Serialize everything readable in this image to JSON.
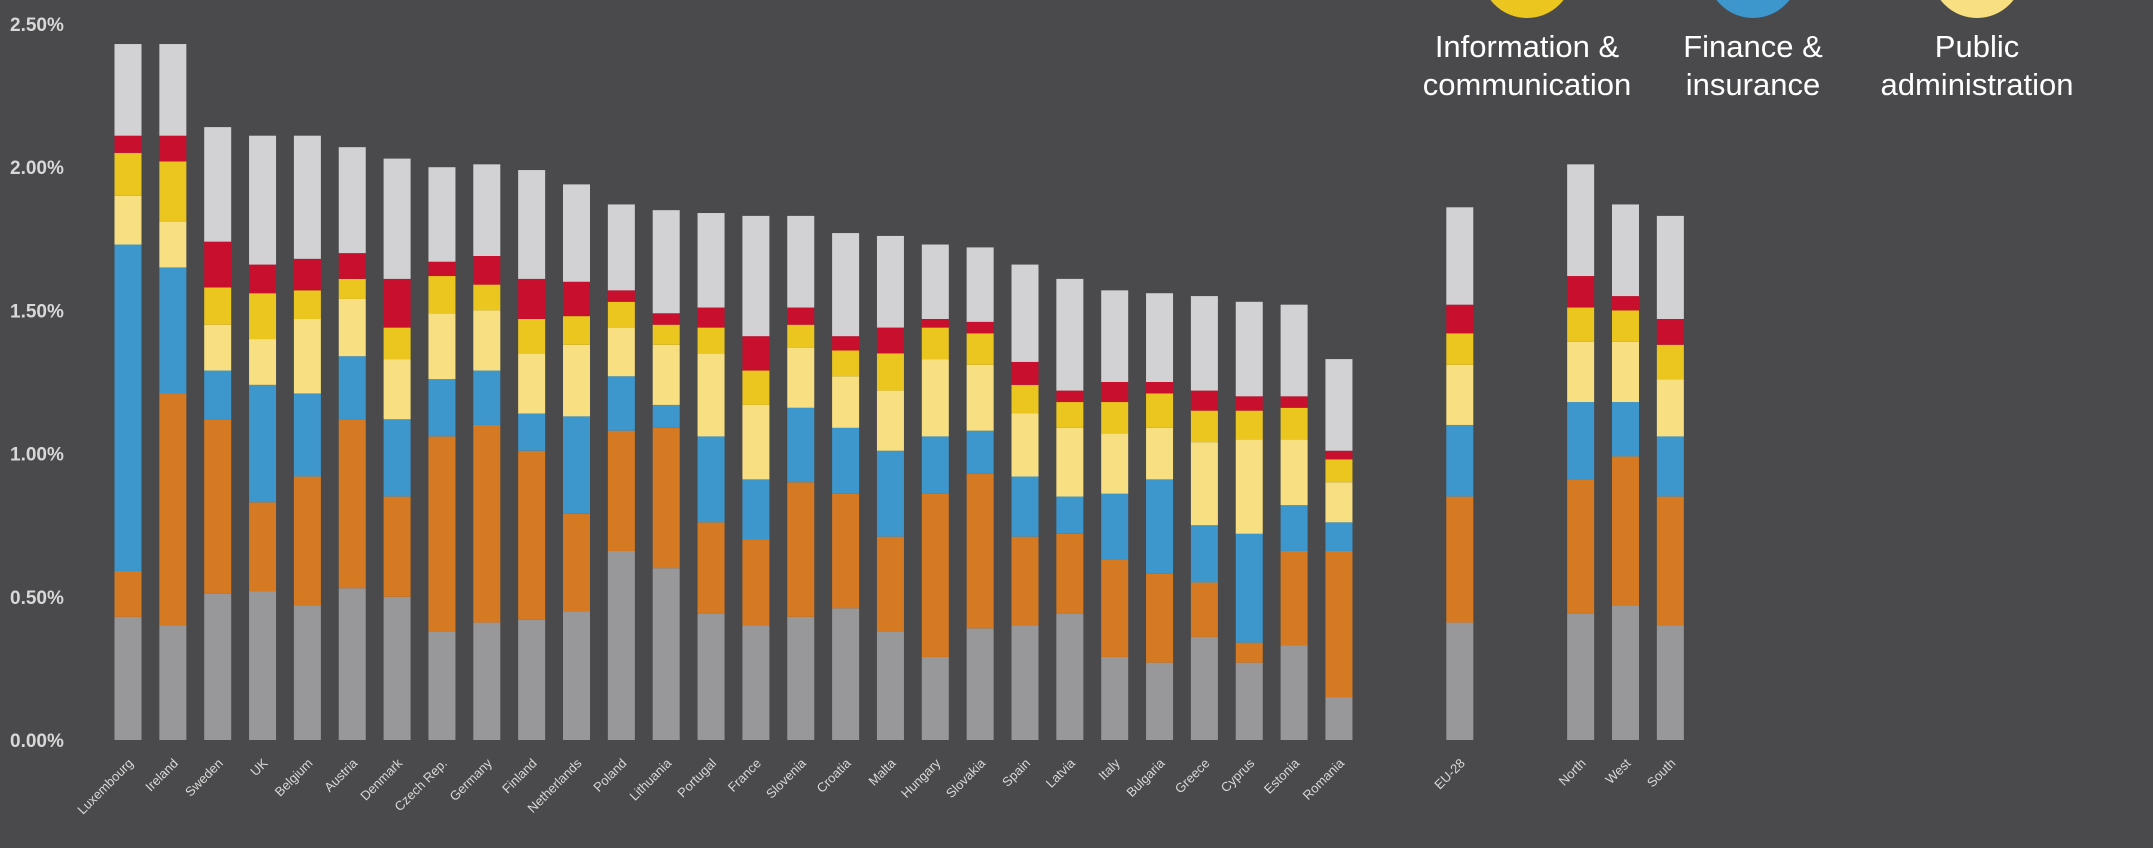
{
  "chart_data": {
    "type": "bar",
    "stacked": true,
    "ylim": [
      0,
      2.5
    ],
    "yticks": [
      "0.00%",
      "0.50%",
      "1.00%",
      "1.50%",
      "2.00%",
      "2.50%"
    ],
    "ytick_values": [
      0,
      0.5,
      1.0,
      1.5,
      2.0,
      2.5
    ],
    "grid": false,
    "legend_position": "top-right",
    "categories": [
      "Luxembourg",
      "Ireland",
      "Sweden",
      "UK",
      "Belgium",
      "Austria",
      "Denmark",
      "Czech Rep.",
      "Germany",
      "Finland",
      "Netherlands",
      "Poland",
      "Lithuania",
      "Portugal",
      "France",
      "Slovenia",
      "Croatia",
      "Malta",
      "Hungary",
      "Slovakia",
      "Spain",
      "Latvia",
      "Italy",
      "Bulgaria",
      "Greece",
      "Cyprus",
      "Estonia",
      "Romania",
      "EU-28",
      "North",
      "West",
      "South"
    ],
    "category_gap_after": [
      27,
      28
    ],
    "series": [
      {
        "name": "",
        "color": "#98979a",
        "values": [
          0.43,
          0.4,
          0.51,
          0.52,
          0.47,
          0.53,
          0.5,
          0.38,
          0.41,
          0.42,
          0.45,
          0.66,
          0.6,
          0.44,
          0.4,
          0.43,
          0.46,
          0.38,
          0.29,
          0.39,
          0.4,
          0.44,
          0.29,
          0.27,
          0.36,
          0.27,
          0.33,
          0.15,
          0.41,
          0.44,
          0.47,
          0.4
        ]
      },
      {
        "name": "",
        "color": "#d57a22",
        "values": [
          0.16,
          0.81,
          0.61,
          0.31,
          0.45,
          0.59,
          0.35,
          0.68,
          0.69,
          0.59,
          0.34,
          0.42,
          0.49,
          0.32,
          0.3,
          0.47,
          0.4,
          0.33,
          0.57,
          0.54,
          0.31,
          0.28,
          0.34,
          0.31,
          0.19,
          0.07,
          0.33,
          0.51,
          0.44,
          0.47,
          0.52,
          0.45
        ]
      },
      {
        "name": "Finance & insurance",
        "color": "#3d96cc",
        "values": [
          1.14,
          0.44,
          0.17,
          0.41,
          0.29,
          0.22,
          0.27,
          0.2,
          0.19,
          0.13,
          0.34,
          0.19,
          0.08,
          0.3,
          0.21,
          0.26,
          0.23,
          0.3,
          0.2,
          0.15,
          0.21,
          0.13,
          0.23,
          0.33,
          0.2,
          0.38,
          0.16,
          0.1,
          0.25,
          0.27,
          0.19,
          0.21
        ]
      },
      {
        "name": "Public administration",
        "color": "#f7df82",
        "values": [
          0.17,
          0.16,
          0.16,
          0.16,
          0.26,
          0.2,
          0.21,
          0.23,
          0.21,
          0.21,
          0.25,
          0.17,
          0.21,
          0.29,
          0.26,
          0.21,
          0.18,
          0.21,
          0.27,
          0.23,
          0.22,
          0.24,
          0.21,
          0.18,
          0.29,
          0.33,
          0.23,
          0.14,
          0.21,
          0.21,
          0.21,
          0.2
        ]
      },
      {
        "name": "Information & communication",
        "color": "#ebc61f",
        "values": [
          0.15,
          0.21,
          0.13,
          0.16,
          0.1,
          0.07,
          0.11,
          0.13,
          0.09,
          0.12,
          0.1,
          0.09,
          0.07,
          0.09,
          0.12,
          0.08,
          0.09,
          0.13,
          0.11,
          0.11,
          0.1,
          0.09,
          0.11,
          0.12,
          0.11,
          0.1,
          0.11,
          0.08,
          0.11,
          0.12,
          0.11,
          0.12
        ]
      },
      {
        "name": "",
        "color": "#c8102e",
        "values": [
          0.06,
          0.09,
          0.16,
          0.1,
          0.11,
          0.09,
          0.17,
          0.05,
          0.1,
          0.14,
          0.12,
          0.04,
          0.04,
          0.07,
          0.12,
          0.06,
          0.05,
          0.09,
          0.03,
          0.04,
          0.08,
          0.04,
          0.07,
          0.04,
          0.07,
          0.05,
          0.04,
          0.03,
          0.1,
          0.11,
          0.05,
          0.09
        ]
      },
      {
        "name": "",
        "color": "#d2d2d4",
        "values": [
          0.32,
          0.32,
          0.4,
          0.45,
          0.43,
          0.37,
          0.42,
          0.33,
          0.32,
          0.38,
          0.34,
          0.3,
          0.36,
          0.33,
          0.42,
          0.32,
          0.36,
          0.32,
          0.26,
          0.26,
          0.34,
          0.39,
          0.32,
          0.31,
          0.33,
          0.33,
          0.32,
          0.32,
          0.34,
          0.39,
          0.32,
          0.36
        ]
      }
    ],
    "legend": [
      {
        "name": "Information & communication",
        "line1": "Information &",
        "line2": "communication",
        "color": "#ebc61f"
      },
      {
        "name": "Finance & insurance",
        "line1": "Finance &",
        "line2": "insurance",
        "color": "#3d96cc"
      },
      {
        "name": "Public administration",
        "line1": "Public",
        "line2": "administration",
        "color": "#f7df82"
      }
    ]
  }
}
